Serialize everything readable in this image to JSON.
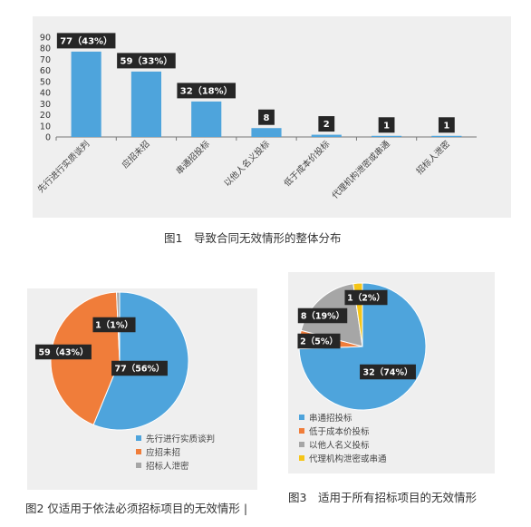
{
  "chart_data": [
    {
      "type": "bar",
      "title": "",
      "categories": [
        "先行进行实质谈判",
        "应招未招",
        "串通招投标",
        "以他人名义投标",
        "低于成本价投标",
        "代理机构泄密或串通",
        "招标人泄密"
      ],
      "values": [
        77,
        59,
        32,
        8,
        2,
        1,
        1
      ],
      "data_labels": [
        "77（43%）",
        "59（33%）",
        "32（18%）",
        "8",
        "2",
        "1",
        "1"
      ],
      "y_ticks": [
        "0",
        "10",
        "20",
        "30",
        "40",
        "50",
        "60",
        "70",
        "80",
        "90"
      ],
      "ylim": [
        0,
        90
      ],
      "grid": false,
      "bar_color": "#4ea4dc"
    },
    {
      "type": "pie",
      "categories": [
        "先行进行实质谈判",
        "应招未招",
        "招标人泄密"
      ],
      "values": [
        77,
        59,
        1
      ],
      "data_labels": [
        "77（56%）",
        "59（43%）",
        "1（1%）"
      ],
      "colors": [
        "#4ea4dc",
        "#f07d3a",
        "#a6a6a6"
      ],
      "legend_position": "bottom-right"
    },
    {
      "type": "pie",
      "categories": [
        "串通招投标",
        "低于成本价投标",
        "以他人名义投标",
        "代理机构泄密或串通"
      ],
      "values": [
        32,
        2,
        8,
        1
      ],
      "data_labels": [
        "32（74%）",
        "2（5%）",
        "8（19%）",
        "1（2%）"
      ],
      "colors": [
        "#4ea4dc",
        "#f07d3a",
        "#a6a6a6",
        "#f5c518"
      ],
      "legend_position": "bottom"
    }
  ],
  "captions": {
    "fig1": "图1　导致合同无效情形的整体分布",
    "fig2": "图2 仅适用于依法必须招标项目的无效情形 |",
    "fig3": "图3　适用于所有招标项目的无效情形"
  }
}
